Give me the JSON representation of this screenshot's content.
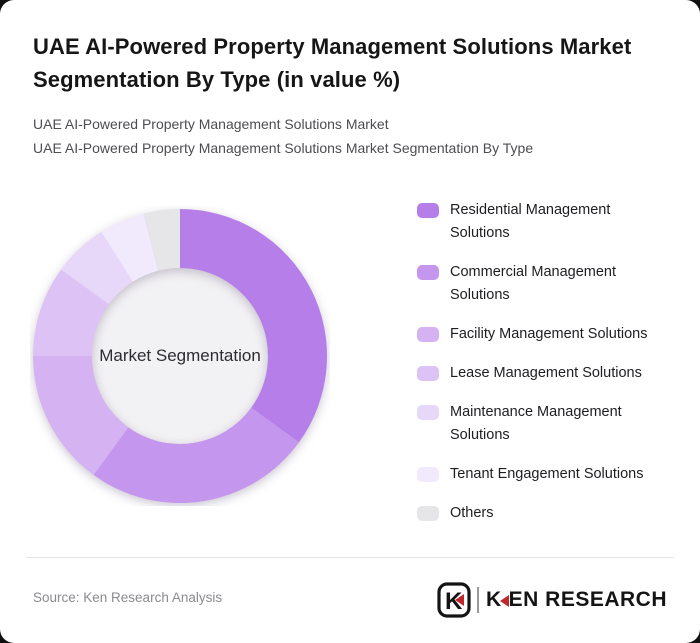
{
  "header": {
    "title": "UAE AI-Powered Property Management Solutions Market Segmentation By Type (in value %)",
    "subtitle_line1": "UAE AI-Powered Property Management Solutions Market",
    "subtitle_line2": "UAE AI-Powered Property Management Solutions Market Segmentation By Type"
  },
  "chart_data": {
    "type": "pie",
    "variant": "donut",
    "title": "UAE AI-Powered Property Management Solutions Market Segmentation By Type (in value %)",
    "unit": "value %",
    "center_label": "Market Segmentation",
    "legend_position": "right",
    "data_labels_shown": false,
    "values_estimated_from_arc_angles": true,
    "inner_radius_ratio": 0.6,
    "hole_color": "#f2f1f3",
    "segments": [
      {
        "label": "Residential Management Solutions",
        "display_label": "Residential Management\nSolutions",
        "value_pct": 35,
        "color": "#b67ee8"
      },
      {
        "label": "Commercial Management Solutions",
        "display_label": "Commercial Management\nSolutions",
        "value_pct": 25,
        "color": "#c596ee"
      },
      {
        "label": "Facility Management Solutions",
        "display_label": "Facility Management Solutions",
        "value_pct": 15,
        "color": "#d5b2f2"
      },
      {
        "label": "Lease Management Solutions",
        "display_label": "Lease Management Solutions",
        "value_pct": 10,
        "color": "#dcc2f5"
      },
      {
        "label": "Maintenance Management Solutions",
        "display_label": "Maintenance Management\nSolutions",
        "value_pct": 6,
        "color": "#e7d7f9"
      },
      {
        "label": "Tenant Engagement Solutions",
        "display_label": "Tenant Engagement Solutions",
        "value_pct": 5,
        "color": "#f1eafc"
      },
      {
        "label": "Others",
        "display_label": "Others",
        "value_pct": 4,
        "color": "#e6e5e8"
      }
    ]
  },
  "footer": {
    "source": "Source: Ken Research Analysis",
    "logo": {
      "badge_letter": "K",
      "wordmark_first_letter": "K",
      "wordmark_rest": "EN RESEARCH",
      "brand_red": "#c0272d",
      "brand_black": "#141414"
    }
  }
}
